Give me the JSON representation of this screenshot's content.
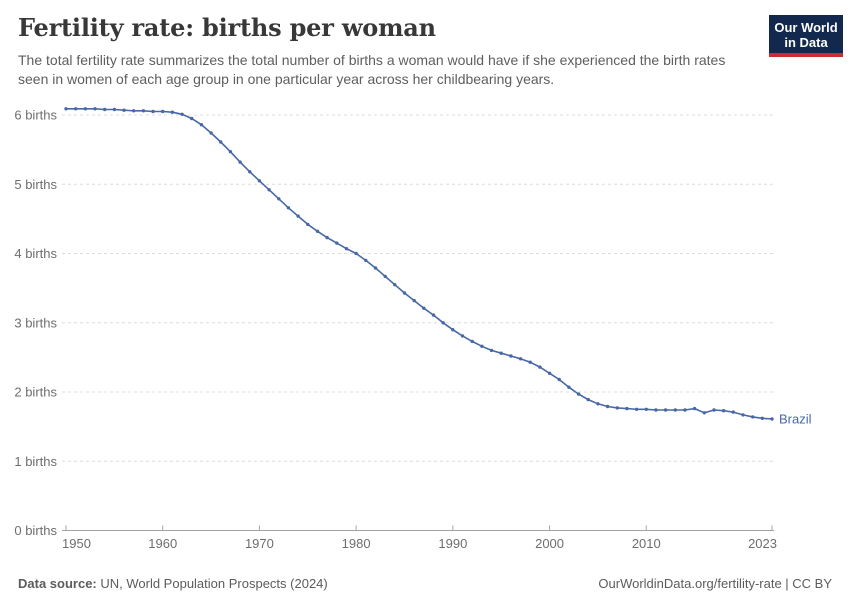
{
  "header": {
    "title": "Fertility rate: births per woman",
    "subtitle": "The total fertility rate summarizes the total number of births a woman would have if she experienced the birth rates seen in women of each age group in one particular year across her childbearing years.",
    "logo": {
      "line1": "Our World",
      "line2": "in Data"
    }
  },
  "chart_data": {
    "type": "line",
    "title": "Fertility rate: births per woman",
    "entity": "Brazil",
    "xlabel": "",
    "ylabel": "births",
    "xlim": [
      1950,
      2023
    ],
    "ylim": [
      0,
      6.3
    ],
    "grid": "horizontal-dashed",
    "legend_position": "line-end-label",
    "y_ticks": [
      {
        "value": 0,
        "label": "0 births"
      },
      {
        "value": 1,
        "label": "1 births"
      },
      {
        "value": 2,
        "label": "2 births"
      },
      {
        "value": 3,
        "label": "3 births"
      },
      {
        "value": 4,
        "label": "4 births"
      },
      {
        "value": 5,
        "label": "5 births"
      },
      {
        "value": 6,
        "label": "6 births"
      }
    ],
    "x_ticks": [
      {
        "value": 1950,
        "label": "1950"
      },
      {
        "value": 1960,
        "label": "1960"
      },
      {
        "value": 1970,
        "label": "1970"
      },
      {
        "value": 1980,
        "label": "1980"
      },
      {
        "value": 1990,
        "label": "1990"
      },
      {
        "value": 2000,
        "label": "2000"
      },
      {
        "value": 2010,
        "label": "2010"
      },
      {
        "value": 2023,
        "label": "2023"
      }
    ],
    "x": [
      1950,
      1951,
      1952,
      1953,
      1954,
      1955,
      1956,
      1957,
      1958,
      1959,
      1960,
      1961,
      1962,
      1963,
      1964,
      1965,
      1966,
      1967,
      1968,
      1969,
      1970,
      1971,
      1972,
      1973,
      1974,
      1975,
      1976,
      1977,
      1978,
      1979,
      1980,
      1981,
      1982,
      1983,
      1984,
      1985,
      1986,
      1987,
      1988,
      1989,
      1990,
      1991,
      1992,
      1993,
      1994,
      1995,
      1996,
      1997,
      1998,
      1999,
      2000,
      2001,
      2002,
      2003,
      2004,
      2005,
      2006,
      2007,
      2008,
      2009,
      2010,
      2011,
      2012,
      2013,
      2014,
      2015,
      2016,
      2017,
      2018,
      2019,
      2020,
      2021,
      2022,
      2023
    ],
    "series": [
      {
        "name": "Brazil",
        "color": "#4868a5",
        "values": [
          6.09,
          6.09,
          6.09,
          6.09,
          6.08,
          6.08,
          6.07,
          6.06,
          6.06,
          6.05,
          6.05,
          6.04,
          6.01,
          5.95,
          5.86,
          5.74,
          5.61,
          5.47,
          5.32,
          5.18,
          5.05,
          4.92,
          4.79,
          4.66,
          4.54,
          4.42,
          4.32,
          4.23,
          4.15,
          4.07,
          4.0,
          3.9,
          3.79,
          3.67,
          3.55,
          3.43,
          3.32,
          3.21,
          3.11,
          3.0,
          2.9,
          2.81,
          2.73,
          2.66,
          2.6,
          2.56,
          2.52,
          2.48,
          2.43,
          2.36,
          2.27,
          2.18,
          2.07,
          1.97,
          1.89,
          1.83,
          1.79,
          1.77,
          1.76,
          1.75,
          1.75,
          1.74,
          1.74,
          1.74,
          1.74,
          1.76,
          1.7,
          1.74,
          1.73,
          1.71,
          1.67,
          1.64,
          1.62,
          1.61
        ]
      }
    ]
  },
  "footer": {
    "source_label": "Data source:",
    "source_text": " UN, World Population Prospects (2024)",
    "link_text": "OurWorldinData.org/fertility-rate | CC BY"
  },
  "colors": {
    "line": "#4868a5",
    "grid": "#dcdcdc",
    "axis": "#a3a3a3",
    "tick_label": "#6e6e6e",
    "title": "#383838",
    "subtitle": "#5e5e5e",
    "footer": "#5c5c5c",
    "logo_bg": "#12294d",
    "logo_red": "#c92d2d"
  }
}
